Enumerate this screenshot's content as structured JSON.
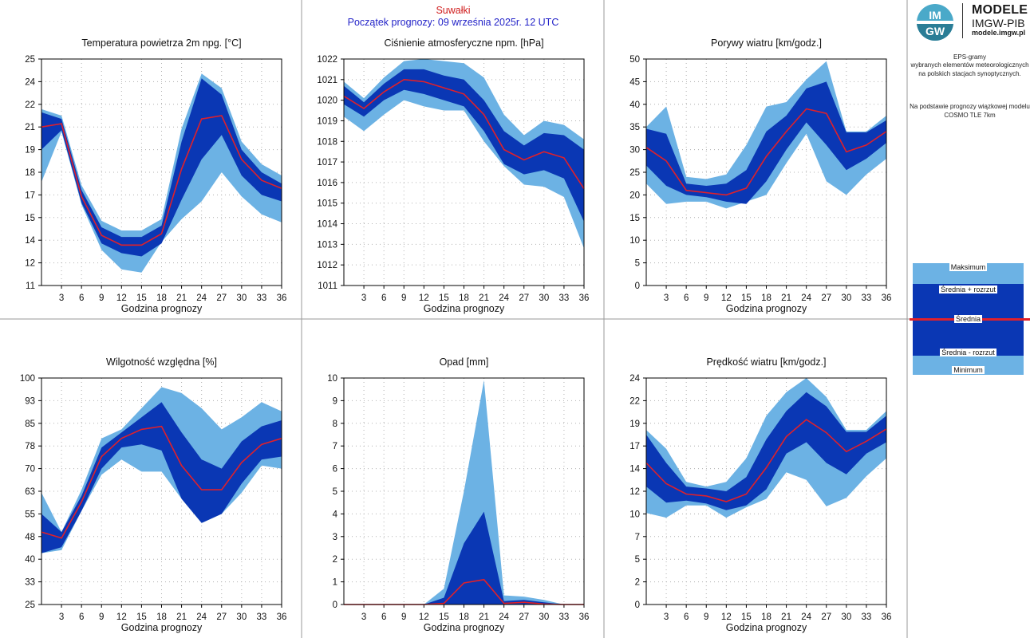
{
  "header": {
    "station": "Suwałki",
    "forecast_start": "Początek prognozy: 09 września 2025r. 12 UTC"
  },
  "logo": {
    "mark_text_top": "IM",
    "mark_text_bottom": "GW",
    "title": "MODELE",
    "subtitle": "IMGW-PIB",
    "url": "modele.imgw.pl"
  },
  "description": {
    "line1": "EPS-gramy\nwybranych elementów meteorologicznych\nna polskich stacjach  synoptycznych.",
    "line2": "Na podstawie prognozy wiązkowej modelu\nCOSMO TLE 7km"
  },
  "legend": {
    "max": "Maksimum",
    "mean_plus": "Średnia + rozrzut",
    "mean": "Średnia",
    "mean_minus": "Średnia - rozrzut",
    "min": "Minimum"
  },
  "colors": {
    "outer_band": "#6cb2e4",
    "inner_band": "#0a37b4",
    "mean_line": "#e0202a",
    "grid": "#b0b0b0",
    "border": "#9a9a9a"
  },
  "chart_data": [
    {
      "type": "area",
      "title": "Temperatura powietrza 2m npg. [°C]",
      "xlabel": "Godzina prognozy",
      "ylabel": "",
      "ylim": [
        11,
        25
      ],
      "yticks": [
        "11",
        "12",
        "14",
        "15",
        "17",
        "18",
        "19",
        "21",
        "22",
        "24",
        "25"
      ],
      "xticks": [
        "3",
        "6",
        "9",
        "12",
        "15",
        "18",
        "21",
        "24",
        "27",
        "30",
        "33",
        "36"
      ],
      "x": [
        0,
        3,
        6,
        9,
        12,
        15,
        18,
        21,
        24,
        27,
        30,
        33,
        36
      ],
      "series": [
        {
          "name": "Maksimum",
          "values": [
            21.9,
            21.5,
            17.2,
            15.0,
            14.4,
            14.4,
            15.1,
            20.7,
            24.1,
            23.2,
            19.9,
            18.5,
            17.8
          ]
        },
        {
          "name": "Średnia + rozrzut",
          "values": [
            21.7,
            21.3,
            16.9,
            14.6,
            14.0,
            14.0,
            14.7,
            19.9,
            23.8,
            22.8,
            19.4,
            18.0,
            17.3
          ]
        },
        {
          "name": "Średnia",
          "values": [
            20.8,
            21.0,
            16.5,
            14.1,
            13.5,
            13.5,
            14.2,
            18.2,
            21.3,
            21.5,
            18.8,
            17.5,
            17.0
          ]
        },
        {
          "name": "Średnia - rozrzut",
          "values": [
            19.4,
            20.6,
            16.1,
            13.6,
            13.0,
            12.8,
            13.6,
            16.3,
            18.8,
            20.3,
            17.8,
            16.6,
            16.2
          ]
        },
        {
          "name": "Minimum",
          "values": [
            17.4,
            20.5,
            16.0,
            13.2,
            12.0,
            11.8,
            13.7,
            15.1,
            16.2,
            18.0,
            16.5,
            15.4,
            14.9
          ]
        }
      ]
    },
    {
      "type": "area",
      "title": "Ciśnienie atmosferyczne npm. [hPa]",
      "xlabel": "Godzina prognozy",
      "ylabel": "",
      "ylim": [
        1011,
        1022
      ],
      "yticks": [
        "1011",
        "1012",
        "1013",
        "1014",
        "1015",
        "1016",
        "1017",
        "1018",
        "1019",
        "1020",
        "1021",
        "1022"
      ],
      "xticks": [
        "3",
        "6",
        "9",
        "12",
        "15",
        "18",
        "21",
        "24",
        "27",
        "30",
        "33",
        "36"
      ],
      "x": [
        0,
        3,
        6,
        9,
        12,
        15,
        18,
        21,
        24,
        27,
        30,
        33,
        36
      ],
      "series": [
        {
          "name": "Maksimum",
          "values": [
            1020.9,
            1020.1,
            1021.1,
            1021.9,
            1022.0,
            1021.9,
            1021.8,
            1021.1,
            1019.3,
            1018.3,
            1019.0,
            1018.8,
            1018.1
          ]
        },
        {
          "name": "Średnia + rozrzut",
          "values": [
            1020.7,
            1019.9,
            1020.8,
            1021.5,
            1021.5,
            1021.2,
            1021.0,
            1020.0,
            1018.5,
            1017.8,
            1018.4,
            1018.3,
            1017.6
          ]
        },
        {
          "name": "Średnia",
          "values": [
            1020.2,
            1019.6,
            1020.4,
            1021.0,
            1020.9,
            1020.6,
            1020.3,
            1019.3,
            1017.6,
            1017.1,
            1017.5,
            1017.2,
            1015.7
          ]
        },
        {
          "name": "Średnia - rozrzut",
          "values": [
            1019.8,
            1019.2,
            1020.0,
            1020.5,
            1020.3,
            1020.0,
            1019.7,
            1018.5,
            1016.9,
            1016.4,
            1016.6,
            1016.2,
            1014.1
          ]
        },
        {
          "name": "Minimum",
          "values": [
            1019.2,
            1018.5,
            1019.3,
            1020.0,
            1019.7,
            1019.5,
            1019.5,
            1018.0,
            1016.8,
            1015.9,
            1015.8,
            1015.3,
            1012.8
          ]
        }
      ]
    },
    {
      "type": "area",
      "title": "Porywy wiatru [km/godz.]",
      "xlabel": "Godzina prognozy",
      "ylabel": "",
      "ylim": [
        0,
        50
      ],
      "yticks": [
        "0",
        "5",
        "10",
        "15",
        "20",
        "25",
        "30",
        "35",
        "40",
        "45",
        "50"
      ],
      "xticks": [
        "3",
        "6",
        "9",
        "12",
        "15",
        "18",
        "21",
        "24",
        "27",
        "30",
        "33",
        "36"
      ],
      "x": [
        0,
        3,
        6,
        9,
        12,
        15,
        18,
        21,
        24,
        27,
        30,
        33,
        36
      ],
      "series": [
        {
          "name": "Maksimum",
          "values": [
            35.0,
            39.5,
            24.0,
            23.5,
            24.5,
            31.0,
            39.5,
            40.5,
            45.5,
            49.5,
            34.0,
            34.0,
            37.5
          ]
        },
        {
          "name": "Średnia + rozrzut",
          "values": [
            34.6,
            33.5,
            22.5,
            22.0,
            22.5,
            25.5,
            34.0,
            37.5,
            43.5,
            45.0,
            33.8,
            33.8,
            36.5
          ]
        },
        {
          "name": "Średnia",
          "values": [
            30.5,
            27.5,
            21.0,
            20.5,
            20.0,
            21.5,
            28.5,
            34.0,
            39.0,
            38.0,
            29.5,
            31.0,
            34.0
          ]
        },
        {
          "name": "Średnia - rozrzut",
          "values": [
            26.5,
            22.0,
            20.0,
            19.5,
            18.5,
            18.0,
            23.0,
            30.0,
            36.0,
            31.0,
            25.5,
            28.0,
            31.5
          ]
        },
        {
          "name": "Minimum",
          "values": [
            22.5,
            18.0,
            18.5,
            18.5,
            17.0,
            18.5,
            20.0,
            27.0,
            33.5,
            23.0,
            20.0,
            24.5,
            28.0
          ]
        }
      ]
    },
    {
      "type": "area",
      "title": "Wilgotność względna [%]",
      "xlabel": "Godzina prognozy",
      "ylabel": "",
      "ylim": [
        25,
        100
      ],
      "yticks": [
        "25",
        "33",
        "40",
        "48",
        "55",
        "63",
        "70",
        "78",
        "85",
        "93",
        "100"
      ],
      "xticks": [
        "3",
        "6",
        "9",
        "12",
        "15",
        "18",
        "21",
        "24",
        "27",
        "30",
        "33",
        "36"
      ],
      "x": [
        0,
        3,
        6,
        9,
        12,
        15,
        18,
        21,
        24,
        27,
        30,
        33,
        36
      ],
      "series": [
        {
          "name": "Maksimum",
          "values": [
            62,
            49,
            63,
            80,
            83,
            90,
            97,
            95,
            90,
            83,
            87,
            92,
            89
          ]
        },
        {
          "name": "Średnia + rozrzut",
          "values": [
            55,
            49,
            61,
            77,
            82,
            87,
            92,
            82,
            73,
            70,
            79,
            84,
            86
          ]
        },
        {
          "name": "Średnia",
          "values": [
            49,
            47,
            59,
            74,
            80,
            83,
            84,
            71,
            63,
            63,
            72,
            78,
            80
          ]
        },
        {
          "name": "Średnia - rozrzut",
          "values": [
            42,
            44,
            56,
            70,
            77,
            78,
            76,
            60,
            52,
            55,
            65,
            73,
            74
          ]
        },
        {
          "name": "Minimum",
          "values": [
            42,
            43,
            56,
            68,
            73,
            69,
            69,
            60,
            52,
            55,
            62,
            71,
            70
          ]
        }
      ]
    },
    {
      "type": "area",
      "title": "Opad [mm]",
      "xlabel": "Godzina prognozy",
      "ylabel": "",
      "ylim": [
        0,
        10
      ],
      "yticks": [
        "0",
        "1",
        "2",
        "3",
        "4",
        "5",
        "6",
        "7",
        "8",
        "9",
        "10"
      ],
      "xticks": [
        "3",
        "6",
        "9",
        "12",
        "15",
        "18",
        "21",
        "24",
        "27",
        "30",
        "33",
        "36"
      ],
      "x": [
        0,
        3,
        6,
        9,
        12,
        15,
        18,
        21,
        24,
        27,
        30,
        33,
        36
      ],
      "series": [
        {
          "name": "Maksimum",
          "values": [
            0,
            0,
            0,
            0,
            0,
            0.7,
            5.0,
            9.9,
            0.4,
            0.35,
            0.2,
            0,
            0
          ]
        },
        {
          "name": "Średnia + rozrzut",
          "values": [
            0,
            0,
            0,
            0,
            0,
            0.3,
            2.7,
            4.1,
            0.15,
            0.2,
            0.1,
            0,
            0
          ]
        },
        {
          "name": "Średnia",
          "values": [
            0,
            0,
            0,
            0,
            0,
            0.05,
            0.95,
            1.1,
            0.05,
            0.1,
            0.02,
            0,
            0
          ]
        },
        {
          "name": "Średnia - rozrzut",
          "values": [
            0,
            0,
            0,
            0,
            0,
            0,
            0,
            0,
            0,
            0,
            0,
            0,
            0
          ]
        },
        {
          "name": "Minimum",
          "values": [
            0,
            0,
            0,
            0,
            0,
            0,
            0,
            0,
            0,
            0,
            0,
            0,
            0
          ]
        }
      ]
    },
    {
      "type": "area",
      "title": "Prędkość wiatru [km/godz.]",
      "xlabel": "Godzina prognozy",
      "ylabel": "",
      "ylim": [
        0,
        24
      ],
      "yticks": [
        "0",
        "2",
        "5",
        "7",
        "10",
        "12",
        "14",
        "17",
        "19",
        "22",
        "24"
      ],
      "xticks": [
        "3",
        "6",
        "9",
        "12",
        "15",
        "18",
        "21",
        "24",
        "27",
        "30",
        "33",
        "36"
      ],
      "x": [
        0,
        3,
        6,
        9,
        12,
        15,
        18,
        21,
        24,
        27,
        30,
        33,
        36
      ],
      "series": [
        {
          "name": "Maksimum",
          "values": [
            18.5,
            16.5,
            13.0,
            12.5,
            13.0,
            15.5,
            20.0,
            22.5,
            24.0,
            22.0,
            18.5,
            18.5,
            20.5
          ]
        },
        {
          "name": "Średnia + rozrzut",
          "values": [
            18.0,
            15.0,
            12.5,
            12.3,
            12.0,
            13.5,
            17.5,
            20.5,
            22.5,
            21.0,
            18.3,
            18.3,
            20.0
          ]
        },
        {
          "name": "Średnia",
          "values": [
            15.0,
            12.8,
            11.7,
            11.5,
            10.9,
            11.7,
            14.5,
            17.8,
            19.6,
            18.2,
            16.2,
            17.3,
            18.6
          ]
        },
        {
          "name": "Średnia - rozrzut",
          "values": [
            12.5,
            10.8,
            11.0,
            10.7,
            10.0,
            10.5,
            12.2,
            16.0,
            17.2,
            15.0,
            13.8,
            16.0,
            17.2
          ]
        },
        {
          "name": "Minimum",
          "values": [
            9.7,
            9.2,
            10.5,
            10.5,
            9.2,
            10.3,
            11.2,
            14.0,
            13.2,
            10.4,
            11.3,
            13.6,
            15.5
          ]
        }
      ]
    }
  ]
}
